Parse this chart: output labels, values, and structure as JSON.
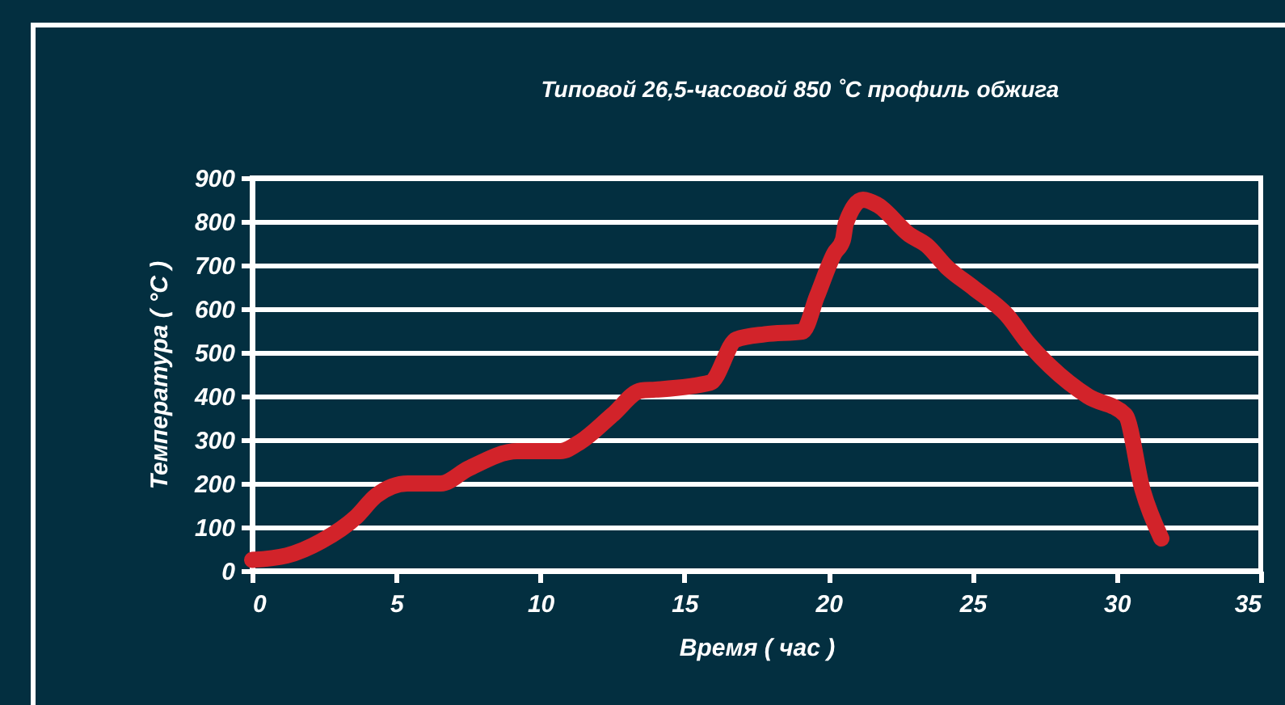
{
  "chart_data": {
    "type": "line",
    "title": "Типовой 26,5-часовой 850 ˚C профиль обжига",
    "xlabel": "Время ( час )",
    "ylabel": "Температура ( °C )",
    "xlim": [
      0,
      35
    ],
    "xticks": [
      0,
      5,
      10,
      15,
      20,
      25,
      30,
      35
    ],
    "ylim": [
      0,
      900
    ],
    "yticks": [
      0,
      100,
      200,
      300,
      400,
      500,
      600,
      700,
      800,
      900
    ],
    "grid": "y",
    "line_style": "solid",
    "x": [
      0,
      1.2,
      2.4,
      3.6,
      4.3,
      5.4,
      6.55,
      7.5,
      9.2,
      10.7,
      11.4,
      12.5,
      13.5,
      14,
      15.9,
      16.8,
      17.8,
      19.1,
      19.6,
      20.2,
      20.5,
      20.6,
      21.2,
      21.7,
      22.8,
      23.4,
      24.1,
      25.05,
      26.2,
      26.9,
      27.7,
      29,
      30.3,
      30.9,
      31.55
    ],
    "series": [
      {
        "color": "#d2232a",
        "values": [
          25,
          35,
          68,
          123,
          172,
          200,
          200,
          234,
          274,
          274,
          296,
          357,
          413,
          415,
          431,
          530,
          542,
          548,
          629,
          727,
          758,
          795,
          850,
          838,
          770,
          746,
          696,
          647,
          585,
          524,
          468,
          400,
          357,
          185,
          74
        ]
      }
    ]
  }
}
